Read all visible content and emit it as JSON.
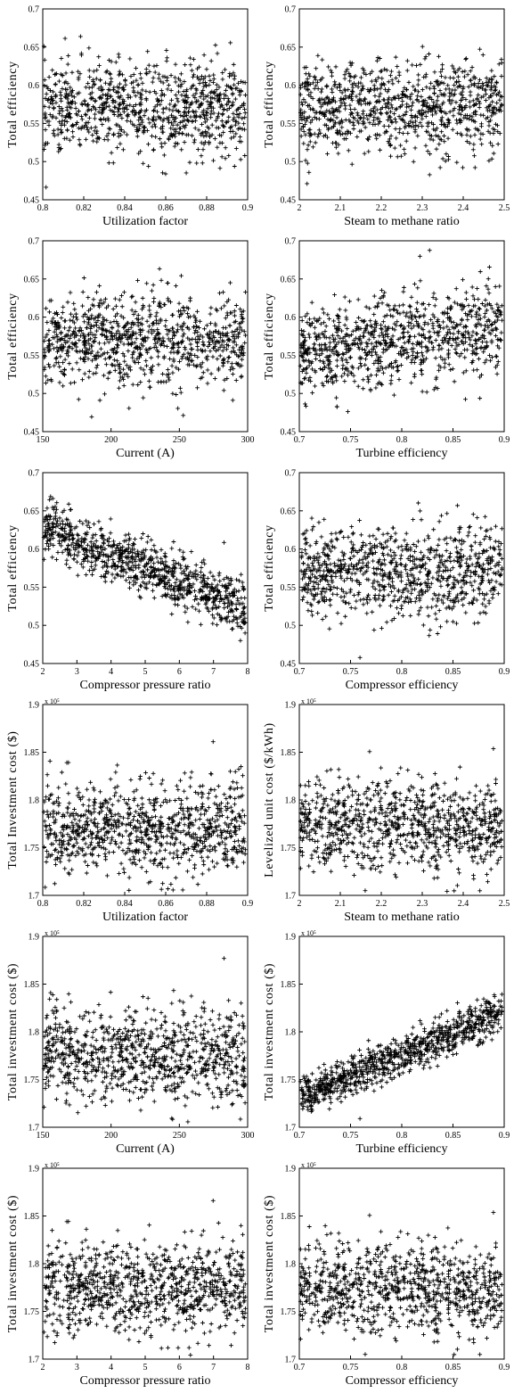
{
  "chart_data": [
    {
      "type": "scatter",
      "xlabel": "Utilization factor",
      "ylabel": "Total efficiency",
      "xlim": [
        0.8,
        0.9
      ],
      "ylim": [
        0.45,
        0.7
      ],
      "xticks": [
        "0.8",
        "0.82",
        "0.84",
        "0.86",
        "0.88",
        "0.9"
      ],
      "yticks": [
        "0.45",
        "0.5",
        "0.55",
        "0.6",
        "0.65",
        "0.7"
      ],
      "y_multiplier": "",
      "trend": "flat",
      "center": 0.57,
      "spread": 0.035
    },
    {
      "type": "scatter",
      "xlabel": "Steam to methane ratio",
      "ylabel": "Total efficiency",
      "xlim": [
        2,
        2.5
      ],
      "ylim": [
        0.45,
        0.7
      ],
      "xticks": [
        "2",
        "2.1",
        "2.2",
        "2.3",
        "2.4",
        "2.5"
      ],
      "yticks": [
        "0.45",
        "0.5",
        "0.55",
        "0.6",
        "0.65",
        "0.7"
      ],
      "y_multiplier": "",
      "trend": "flat",
      "center": 0.57,
      "spread": 0.035
    },
    {
      "type": "scatter",
      "xlabel": "Current (A)",
      "ylabel": "Total efficiency",
      "xlim": [
        150,
        300
      ],
      "ylim": [
        0.45,
        0.7
      ],
      "xticks": [
        "150",
        "200",
        "250",
        "300"
      ],
      "yticks": [
        "0.45",
        "0.5",
        "0.55",
        "0.6",
        "0.65",
        "0.7"
      ],
      "y_multiplier": "",
      "trend": "flat",
      "center": 0.57,
      "spread": 0.035
    },
    {
      "type": "scatter",
      "xlabel": "Turbine efficiency",
      "ylabel": "Total efficiency",
      "xlim": [
        0.7,
        0.9
      ],
      "ylim": [
        0.45,
        0.7
      ],
      "xticks": [
        "0.7",
        "0.75",
        "0.8",
        "0.85",
        "0.9"
      ],
      "yticks": [
        "0.45",
        "0.5",
        "0.55",
        "0.6",
        "0.65",
        "0.7"
      ],
      "y_multiplier": "",
      "trend": "slightly increasing",
      "center": 0.57,
      "spread": 0.035
    },
    {
      "type": "scatter",
      "xlabel": "Compressor pressure ratio",
      "ylabel": "Total efficiency",
      "xlim": [
        2,
        8
      ],
      "ylim": [
        0.45,
        0.7
      ],
      "xticks": [
        "2",
        "3",
        "4",
        "5",
        "6",
        "7",
        "8"
      ],
      "yticks": [
        "0.45",
        "0.5",
        "0.55",
        "0.6",
        "0.65",
        "0.7"
      ],
      "y_multiplier": "",
      "trend": "decreasing from ~0.62 to ~0.52",
      "center": 0.57,
      "spread": 0.02
    },
    {
      "type": "scatter",
      "xlabel": "Compressor efficiency",
      "ylabel": "Total efficiency",
      "xlim": [
        0.7,
        0.9
      ],
      "ylim": [
        0.45,
        0.7
      ],
      "xticks": [
        "0.7",
        "0.75",
        "0.8",
        "0.85",
        "0.9"
      ],
      "yticks": [
        "0.45",
        "0.5",
        "0.55",
        "0.6",
        "0.65",
        "0.7"
      ],
      "y_multiplier": "",
      "trend": "flat",
      "center": 0.57,
      "spread": 0.035
    },
    {
      "type": "scatter",
      "xlabel": "Utilization factor",
      "ylabel": "Total Investment cost ($)",
      "xlim": [
        0.8,
        0.9
      ],
      "ylim": [
        1.7,
        1.9
      ],
      "xticks": [
        "0.8",
        "0.82",
        "0.84",
        "0.86",
        "0.88",
        "0.9"
      ],
      "yticks": [
        "1.7",
        "1.75",
        "1.8",
        "1.85",
        "1.9"
      ],
      "y_multiplier": "x 10⁵",
      "trend": "flat",
      "center": 1.77,
      "spread": 0.028
    },
    {
      "type": "scatter",
      "xlabel": "Steam to methane ratio",
      "ylabel": "Levelized unit cost ($/kWh)",
      "xlim": [
        2,
        2.5
      ],
      "ylim": [
        1.7,
        1.9
      ],
      "xticks": [
        "2",
        "2.1",
        "2.2",
        "2.3",
        "2.4",
        "2.5"
      ],
      "yticks": [
        "1.7",
        "1.75",
        "1.8",
        "1.85",
        "1.9"
      ],
      "y_multiplier": "x 10⁵",
      "trend": "flat",
      "center": 1.775,
      "spread": 0.028
    },
    {
      "type": "scatter",
      "xlabel": "Current (A)",
      "ylabel": "Total investment cost ($)",
      "xlim": [
        150,
        300
      ],
      "ylim": [
        1.7,
        1.9
      ],
      "xticks": [
        "150",
        "200",
        "250",
        "300"
      ],
      "yticks": [
        "1.7",
        "1.75",
        "1.8",
        "1.85",
        "1.9"
      ],
      "y_multiplier": "x 10⁵",
      "trend": "flat",
      "center": 1.775,
      "spread": 0.028
    },
    {
      "type": "scatter",
      "xlabel": "Turbine efficiency",
      "ylabel": "Total investment cost ($)",
      "xlim": [
        0.7,
        0.9
      ],
      "ylim": [
        1.7,
        1.9
      ],
      "xticks": [
        "0.7",
        "0.75",
        "0.8",
        "0.85",
        "0.9"
      ],
      "yticks": [
        "1.7",
        "1.75",
        "1.8",
        "1.85",
        "1.9"
      ],
      "y_multiplier": "x 10⁵",
      "trend": "increasing from ~1.73 to ~1.82",
      "center": 1.775,
      "spread": 0.012
    },
    {
      "type": "scatter",
      "xlabel": "Compressor pressure ratio",
      "ylabel": "Total investment cost ($)",
      "xlim": [
        2,
        8
      ],
      "ylim": [
        1.7,
        1.9
      ],
      "xticks": [
        "2",
        "3",
        "4",
        "5",
        "6",
        "7",
        "8"
      ],
      "yticks": [
        "1.7",
        "1.75",
        "1.8",
        "1.85",
        "1.9"
      ],
      "y_multiplier": "x 10⁵",
      "trend": "flat",
      "center": 1.775,
      "spread": 0.028
    },
    {
      "type": "scatter",
      "xlabel": "Compressor efficiency",
      "ylabel": "Total investment cost ($)",
      "xlim": [
        0.7,
        0.9
      ],
      "ylim": [
        1.7,
        1.9
      ],
      "xticks": [
        "0.7",
        "0.75",
        "0.8",
        "0.85",
        "0.9"
      ],
      "yticks": [
        "1.7",
        "1.75",
        "1.8",
        "1.85",
        "1.9"
      ],
      "y_multiplier": "x 10⁵",
      "trend": "flat",
      "center": 1.775,
      "spread": 0.028
    }
  ],
  "colors": {
    "marker": "#000000",
    "axis": "#000000",
    "background": "#ffffff"
  },
  "marker_glyph": "+"
}
